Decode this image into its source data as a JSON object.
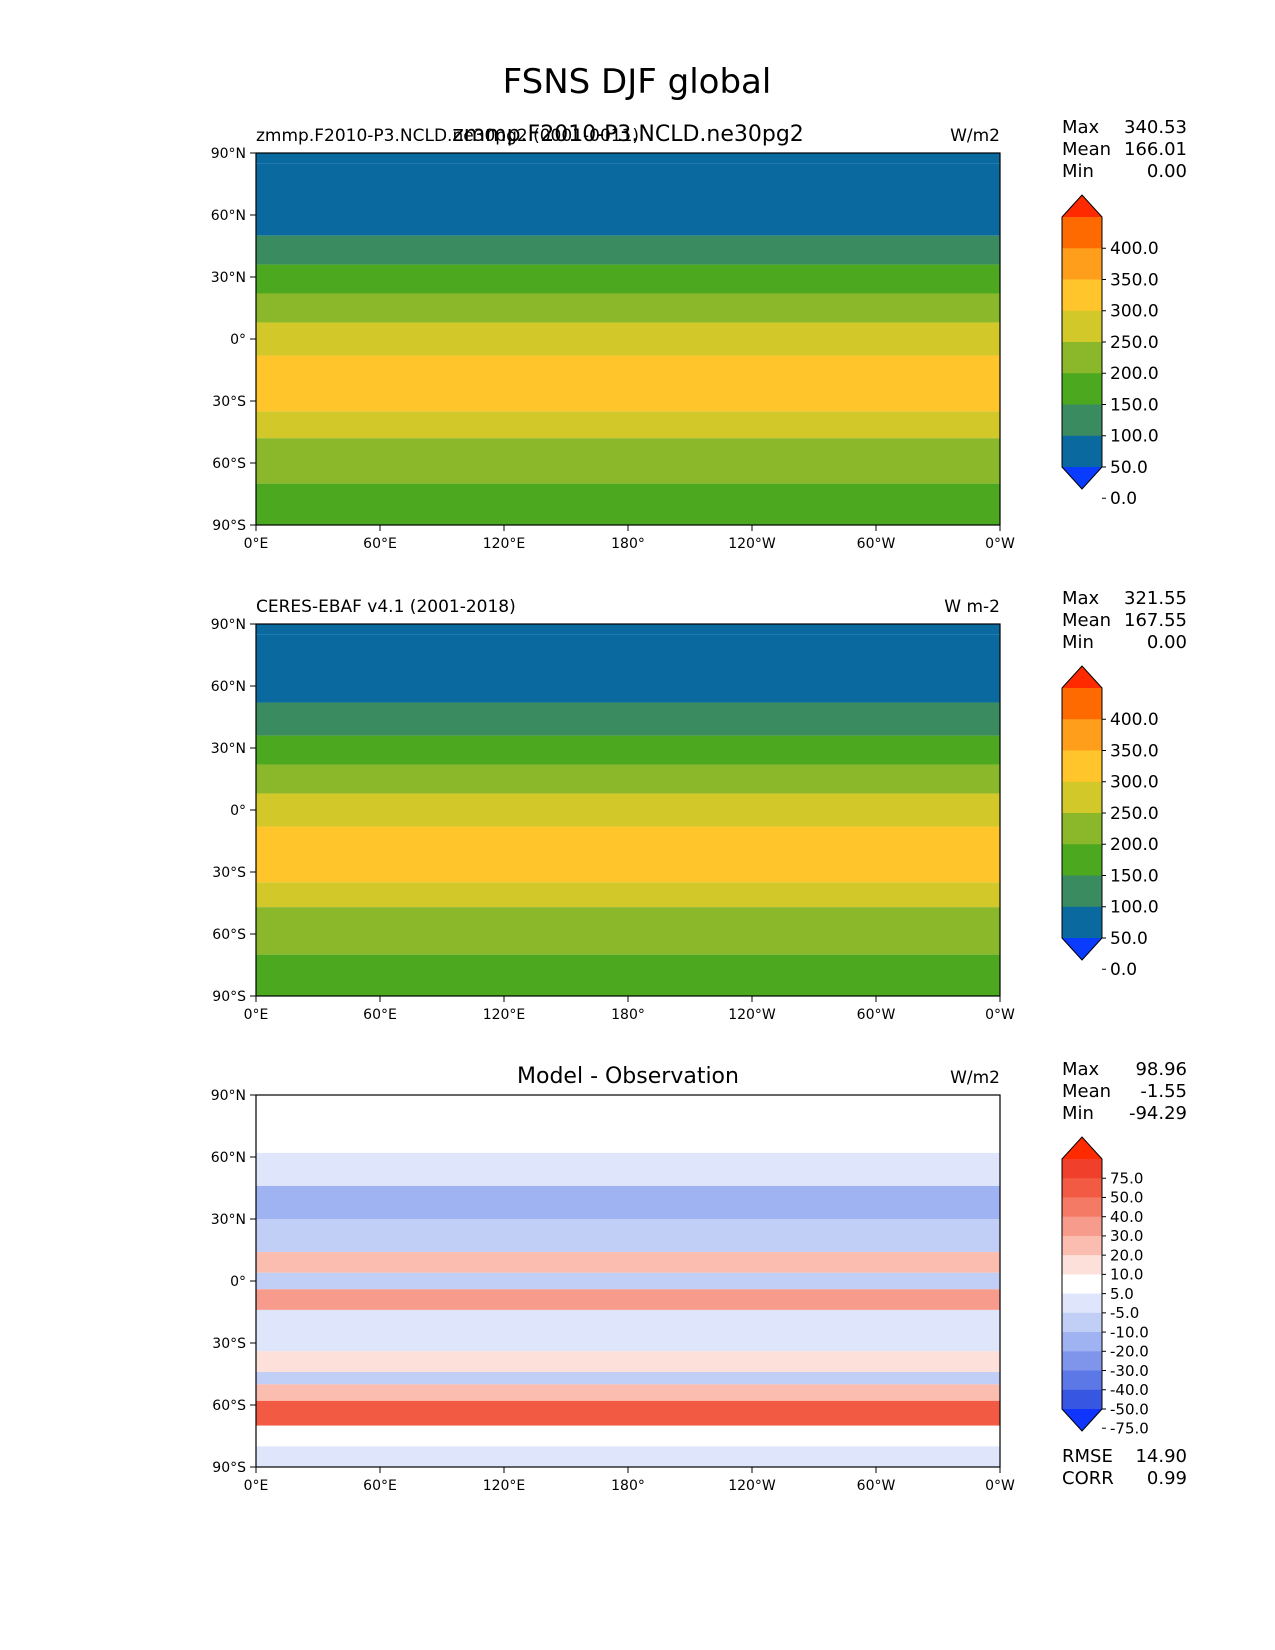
{
  "figure": {
    "title": "FSNS DJF global"
  },
  "chart_data": [
    {
      "type": "heatmap",
      "kind": "map",
      "title_left": "zmmp.F2010-P3.NCLD.ne30pg2 (0001-0011)",
      "title_center": "zmmp.F2010-P3.NCLD.ne30pg2",
      "units": "W/m2",
      "lat_ticks": [
        "90°N",
        "60°N",
        "30°N",
        "0°",
        "30°S",
        "60°S",
        "90°S"
      ],
      "lon_ticks": [
        "0°E",
        "60°E",
        "120°E",
        "180°",
        "120°W",
        "60°W",
        "0°W"
      ],
      "xlim": [
        0,
        360
      ],
      "ylim": [
        -90,
        90
      ],
      "stats": [
        {
          "label": "Max",
          "value": "340.53"
        },
        {
          "label": "Mean",
          "value": "166.01"
        },
        {
          "label": "Min",
          "value": "0.00"
        }
      ],
      "colorbar": {
        "levels": [
          "400.0",
          "350.0",
          "300.0",
          "250.0",
          "200.0",
          "150.0",
          "100.0",
          "50.0",
          "0.0"
        ],
        "colors": [
          "#ff2a00",
          "#ff6a00",
          "#ff9e1a",
          "#ffc52a",
          "#d2c82a",
          "#8ab82a",
          "#4ca81f",
          "#3a8c60",
          "#0a6aa0",
          "#0a3cff"
        ],
        "extend": "both"
      },
      "zonal_bands": [
        {
          "lat_from": 90,
          "lat_to": 85,
          "value": 0
        },
        {
          "lat_from": 85,
          "lat_to": 50,
          "value": 25
        },
        {
          "lat_from": 50,
          "lat_to": 36,
          "value": 75
        },
        {
          "lat_from": 36,
          "lat_to": 22,
          "value": 125
        },
        {
          "lat_from": 22,
          "lat_to": 8,
          "value": 175
        },
        {
          "lat_from": 8,
          "lat_to": -8,
          "value": 225
        },
        {
          "lat_from": -8,
          "lat_to": -35,
          "value": 260
        },
        {
          "lat_from": -35,
          "lat_to": -48,
          "value": 225
        },
        {
          "lat_from": -48,
          "lat_to": -70,
          "value": 175
        },
        {
          "lat_from": -70,
          "lat_to": -90,
          "value": 110
        }
      ]
    },
    {
      "type": "heatmap",
      "kind": "map",
      "title_left": "CERES-EBAF v4.1 (2001-2018)",
      "title_center": "",
      "units": "W m-2",
      "lat_ticks": [
        "90°N",
        "60°N",
        "30°N",
        "0°",
        "30°S",
        "60°S",
        "90°S"
      ],
      "lon_ticks": [
        "0°E",
        "60°E",
        "120°E",
        "180°",
        "120°W",
        "60°W",
        "0°W"
      ],
      "xlim": [
        0,
        360
      ],
      "ylim": [
        -90,
        90
      ],
      "stats": [
        {
          "label": "Max",
          "value": "321.55"
        },
        {
          "label": "Mean",
          "value": "167.55"
        },
        {
          "label": "Min",
          "value": "0.00"
        }
      ],
      "colorbar": {
        "levels": [
          "400.0",
          "350.0",
          "300.0",
          "250.0",
          "200.0",
          "150.0",
          "100.0",
          "50.0",
          "0.0"
        ],
        "colors": [
          "#ff2a00",
          "#ff6a00",
          "#ff9e1a",
          "#ffc52a",
          "#d2c82a",
          "#8ab82a",
          "#4ca81f",
          "#3a8c60",
          "#0a6aa0",
          "#0a3cff"
        ],
        "extend": "both"
      },
      "zonal_bands": [
        {
          "lat_from": 90,
          "lat_to": 85,
          "value": 0
        },
        {
          "lat_from": 85,
          "lat_to": 52,
          "value": 25
        },
        {
          "lat_from": 52,
          "lat_to": 36,
          "value": 75
        },
        {
          "lat_from": 36,
          "lat_to": 22,
          "value": 125
        },
        {
          "lat_from": 22,
          "lat_to": 8,
          "value": 175
        },
        {
          "lat_from": 8,
          "lat_to": -8,
          "value": 225
        },
        {
          "lat_from": -8,
          "lat_to": -35,
          "value": 260
        },
        {
          "lat_from": -35,
          "lat_to": -47,
          "value": 225
        },
        {
          "lat_from": -47,
          "lat_to": -70,
          "value": 175
        },
        {
          "lat_from": -70,
          "lat_to": -90,
          "value": 110
        }
      ]
    },
    {
      "type": "heatmap",
      "kind": "map",
      "title_left": "",
      "title_center": "Model - Observation",
      "units": "W/m2",
      "lat_ticks": [
        "90°N",
        "60°N",
        "30°N",
        "0°",
        "30°S",
        "60°S",
        "90°S"
      ],
      "lon_ticks": [
        "0°E",
        "60°E",
        "120°E",
        "180°",
        "120°W",
        "60°W",
        "0°W"
      ],
      "xlim": [
        0,
        360
      ],
      "ylim": [
        -90,
        90
      ],
      "stats": [
        {
          "label": "Max",
          "value": "98.96"
        },
        {
          "label": "Mean",
          "value": "-1.55"
        },
        {
          "label": "Min",
          "value": "-94.29"
        }
      ],
      "metrics": [
        {
          "label": "RMSE",
          "value": "14.90"
        },
        {
          "label": "CORR",
          "value": "0.99"
        }
      ],
      "colorbar": {
        "levels": [
          "75.0",
          "50.0",
          "40.0",
          "30.0",
          "20.0",
          "10.0",
          "5.0",
          "-5.0",
          "-10.0",
          "-20.0",
          "-30.0",
          "-40.0",
          "-50.0",
          "-75.0"
        ],
        "colors": [
          "#ff2a00",
          "#f0402c",
          "#f25a44",
          "#f47a66",
          "#f79c8c",
          "#fbbdb0",
          "#fde0da",
          "#ffffff",
          "#dfe6fb",
          "#c1cff6",
          "#9fb2f1",
          "#7f95ec",
          "#5c77e6",
          "#3757e3",
          "#1035ff"
        ],
        "extend": "both"
      },
      "zonal_bands": [
        {
          "lat_from": 90,
          "lat_to": 62,
          "value": 0
        },
        {
          "lat_from": 62,
          "lat_to": 46,
          "value": -7
        },
        {
          "lat_from": 46,
          "lat_to": 30,
          "value": -22
        },
        {
          "lat_from": 30,
          "lat_to": 14,
          "value": -12
        },
        {
          "lat_from": 14,
          "lat_to": 4,
          "value": 12
        },
        {
          "lat_from": 4,
          "lat_to": -4,
          "value": -15
        },
        {
          "lat_from": -4,
          "lat_to": -14,
          "value": 25
        },
        {
          "lat_from": -14,
          "lat_to": -34,
          "value": -8
        },
        {
          "lat_from": -34,
          "lat_to": -44,
          "value": 8
        },
        {
          "lat_from": -44,
          "lat_to": -50,
          "value": -15
        },
        {
          "lat_from": -50,
          "lat_to": -58,
          "value": 12
        },
        {
          "lat_from": -58,
          "lat_to": -70,
          "value": 45
        },
        {
          "lat_from": -70,
          "lat_to": -80,
          "value": 2
        },
        {
          "lat_from": -80,
          "lat_to": -90,
          "value": -7
        }
      ]
    }
  ]
}
